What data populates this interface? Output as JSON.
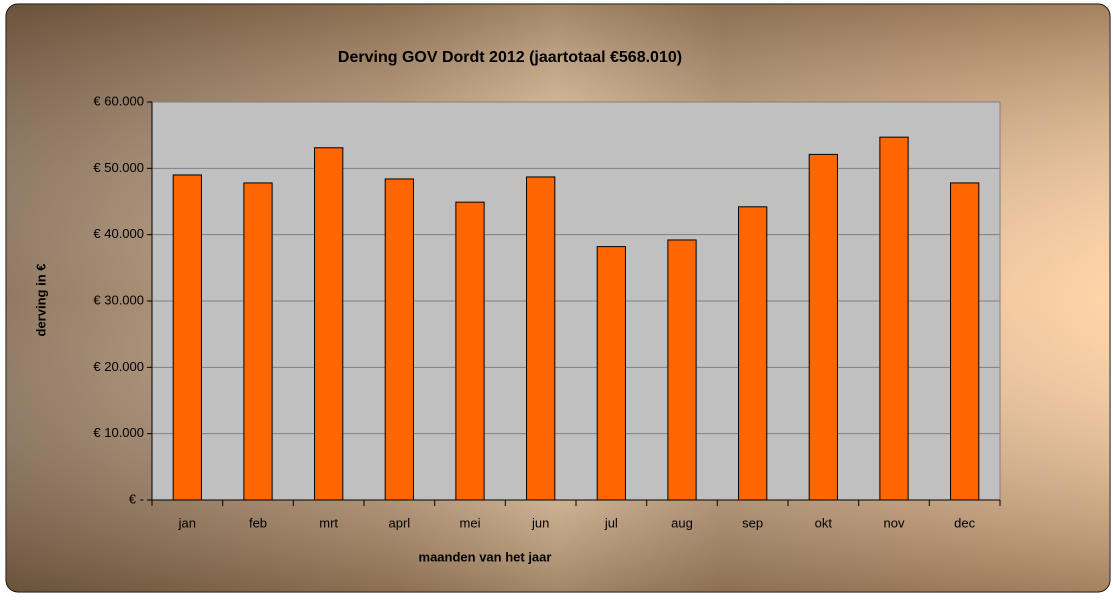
{
  "chart_data": {
    "type": "bar",
    "title": "Derving GOV Dordt 2012 (jaartotaal €568.010)",
    "x_label": "maanden van het jaar",
    "y_label": "derving in €",
    "categories": [
      "jan",
      "feb",
      "mrt",
      "aprl",
      "mei",
      "jun",
      "jul",
      "aug",
      "sep",
      "okt",
      "nov",
      "dec"
    ],
    "values": [
      49000,
      47800,
      53100,
      48400,
      44900,
      48700,
      38200,
      39200,
      44200,
      52100,
      54700,
      47800
    ],
    "color": "#ff6600",
    "ylim": [
      0,
      60000
    ],
    "yticks": [
      {
        "value": 0,
        "label": "€ -"
      },
      {
        "value": 10000,
        "label": "€ 10.000"
      },
      {
        "value": 20000,
        "label": "€ 20.000"
      },
      {
        "value": 30000,
        "label": "€ 30.000"
      },
      {
        "value": 40000,
        "label": "€ 40.000"
      },
      {
        "value": 50000,
        "label": "€ 50.000"
      },
      {
        "value": 60000,
        "label": "€ 60.000"
      }
    ],
    "grid": true
  }
}
